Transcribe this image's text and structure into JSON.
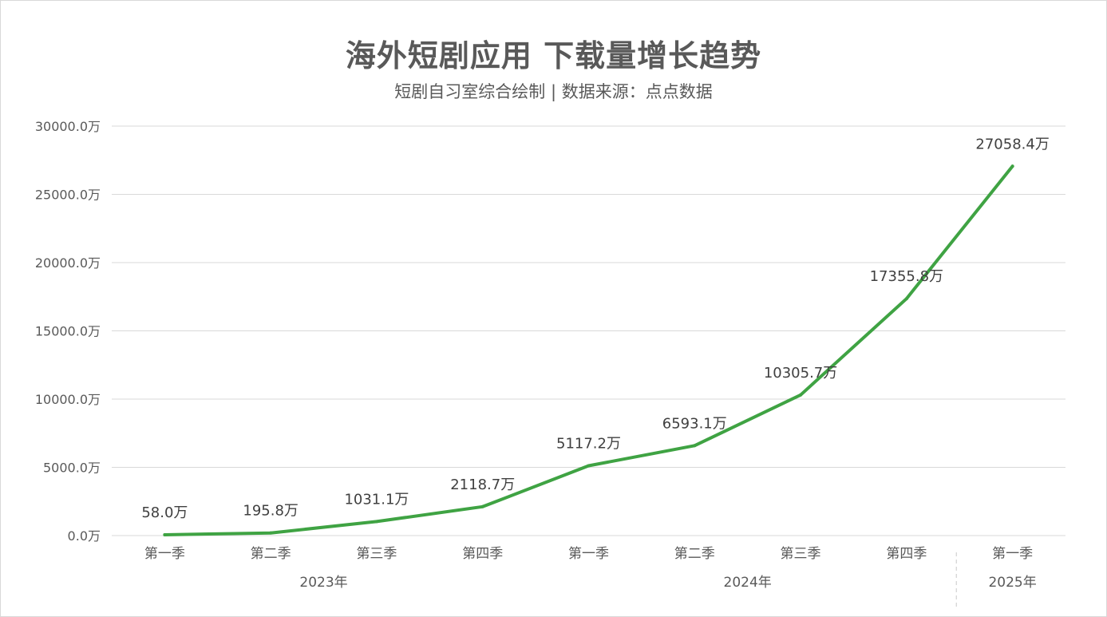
{
  "chart_data": {
    "type": "line",
    "title": "海外短剧应用 下载量增长趋势",
    "subtitle": "短剧自习室综合绘制 | 数据来源：点点数据",
    "ylim": [
      0,
      30000
    ],
    "y_ticks": [
      "0.0万",
      "5000.0万",
      "10000.0万",
      "15000.0万",
      "20000.0万",
      "25000.0万",
      "30000.0万"
    ],
    "y_tick_values": [
      0,
      5000,
      10000,
      15000,
      20000,
      25000,
      30000
    ],
    "categories": [
      "第一季",
      "第二季",
      "第三季",
      "第四季",
      "第一季",
      "第二季",
      "第三季",
      "第四季",
      "第一季"
    ],
    "groups": [
      {
        "label": "2023年",
        "count": 4
      },
      {
        "label": "2024年",
        "count": 4
      },
      {
        "label": "2025年",
        "count": 1
      }
    ],
    "series": [
      {
        "values": [
          58.0,
          195.8,
          1031.1,
          2118.7,
          5117.2,
          6593.1,
          10305.7,
          17355.8,
          27058.4
        ],
        "labels": [
          "58.0万",
          "195.8万",
          "1031.1万",
          "2118.7万",
          "5117.2万",
          "6593.1万",
          "10305.7万",
          "17355.8万",
          "27058.4万"
        ],
        "color": "#3fa343"
      }
    ],
    "grid": true,
    "legend": "none",
    "colors": {
      "line": "#3fa343",
      "grid": "#d9d9d9",
      "text": "#595959"
    }
  }
}
